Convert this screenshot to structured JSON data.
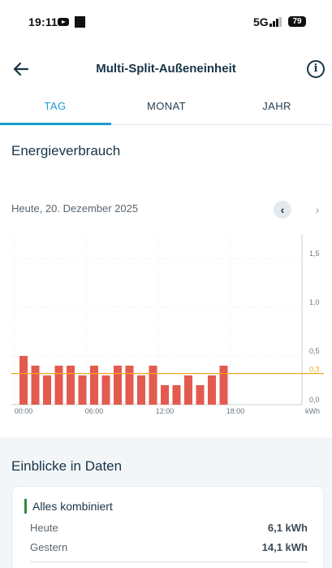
{
  "status_bar": {
    "time": "19:11",
    "network": "5G",
    "battery": "79"
  },
  "app_bar": {
    "title": "Multi-Split-Außeneinheit",
    "info_glyph": "i"
  },
  "tabs": [
    {
      "label": "TAG",
      "active": true
    },
    {
      "label": "MONAT",
      "active": false
    },
    {
      "label": "JAHR",
      "active": false
    }
  ],
  "energy": {
    "title": "Energieverbrauch",
    "date_label": "Heute, 20. Dezember 2025",
    "prev_glyph": "‹",
    "next_glyph": "›"
  },
  "chart_data": {
    "type": "bar",
    "unit": "kWh",
    "ylim": [
      0,
      1.75
    ],
    "y_ticks": [
      {
        "value": 0,
        "label": "0,0"
      },
      {
        "value": 0.5,
        "label": "0,5"
      },
      {
        "value": 1.0,
        "label": "1,0"
      },
      {
        "value": 1.5,
        "label": "1,5"
      }
    ],
    "x_ticks": [
      {
        "hour": 0,
        "label": "00:00"
      },
      {
        "hour": 6,
        "label": "06:00"
      },
      {
        "hour": 12,
        "label": "12:00"
      },
      {
        "hour": 18,
        "label": "18:00"
      }
    ],
    "reference_line": {
      "value": 0.32,
      "label": "0,3",
      "color": "#f5a623"
    },
    "bar_color": "#e35b4f",
    "grid": true,
    "categories": [
      "00:00",
      "01:00",
      "02:00",
      "03:00",
      "04:00",
      "05:00",
      "06:00",
      "07:00",
      "08:00",
      "09:00",
      "10:00",
      "11:00",
      "12:00",
      "13:00",
      "14:00",
      "15:00",
      "16:00",
      "17:00",
      "18:00"
    ],
    "values": [
      0.5,
      0.4,
      0.3,
      0.4,
      0.4,
      0.3,
      0.4,
      0.3,
      0.4,
      0.4,
      0.3,
      0.4,
      0.2,
      0.2,
      0.3,
      0.2,
      0.3,
      0.4,
      0
    ]
  },
  "insights": {
    "title": "Einblicke in Daten",
    "card_title": "Alles kombiniert",
    "rows": [
      {
        "label": "Heute",
        "value": "6,1 kWh"
      },
      {
        "label": "Gestern",
        "value": "14,1 kWh"
      }
    ]
  },
  "colors": {
    "accent": "#1d9bd1",
    "bar": "#e35b4f",
    "reference": "#f5a623",
    "card_marker": "#2e8b3e"
  }
}
